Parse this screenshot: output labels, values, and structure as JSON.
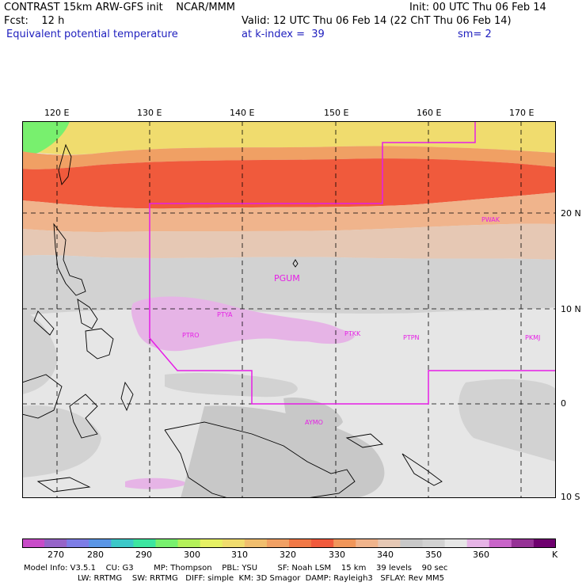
{
  "header": {
    "line1_left": "CONTRAST 15km ARW-GFS init    NCAR/MMM",
    "line1_right": "Init: 00 UTC Thu 06 Feb 14",
    "fcst": "Fcst:    12 h",
    "valid": "Valid: 12 UTC Thu 06 Feb 14 (22 ChT Thu 06 Feb 14)",
    "field": "Equivalent potential temperature",
    "level": "at k-index =  39",
    "smooth": "sm= 2"
  },
  "map": {
    "lon_labels": [
      "120 E",
      "130 E",
      "140 E",
      "150 E",
      "160 E",
      "170 E"
    ],
    "lat_labels": [
      "20 N",
      "10 N",
      "0",
      "10 S"
    ],
    "stations": [
      "PWAK",
      "PGUM",
      "PTYA",
      "PTRO",
      "PTKK",
      "PTPN",
      "PKMJ",
      "AYMO"
    ],
    "colors": {
      "boundary": "#e61ee6",
      "grid": "#000000"
    }
  },
  "colorbar": {
    "colors": [
      "#c84bc8",
      "#9664c8",
      "#7d7de6",
      "#5a96e6",
      "#3cc8c8",
      "#3ce6a0",
      "#78f06e",
      "#b4f05a",
      "#e6f064",
      "#f0dc6e",
      "#f0be6e",
      "#f0a064",
      "#f07846",
      "#f05a3c",
      "#f0965a",
      "#f0b48c",
      "#e6c8b4",
      "#c8c8c8",
      "#d2d2d2",
      "#e6e6e6",
      "#e6b4e6",
      "#c864c8",
      "#963296",
      "#6e006e"
    ],
    "labels": [
      "270",
      "280",
      "290",
      "300",
      "310",
      "320",
      "330",
      "340",
      "350",
      "360",
      "K"
    ]
  },
  "footer": {
    "line1": "Model Info: V3.5.1    CU: G3        MP: Thompson    PBL: YSU        SF: Noah LSM    15 km    39 levels    90 sec",
    "line2": "LW: RRTMG    SW: RRTMG   DIFF: simple  KM: 3D Smagor  DAMP: Rayleigh3   SFLAY: Rev MM5"
  }
}
